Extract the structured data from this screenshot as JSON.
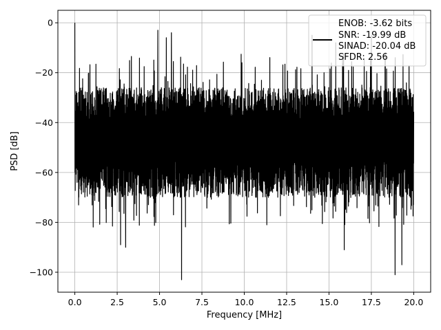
{
  "chart_data": {
    "type": "line",
    "title": "",
    "xlabel": "Frequency [MHz]",
    "ylabel": "PSD [dB]",
    "xlim": [
      -1.0,
      21.0
    ],
    "ylim": [
      -108,
      5
    ],
    "x_ticks": [
      0.0,
      2.5,
      5.0,
      7.5,
      10.0,
      12.5,
      15.0,
      17.5,
      20.0
    ],
    "x_tick_labels": [
      "0.0",
      "2.5",
      "5.0",
      "7.5",
      "10.0",
      "12.5",
      "15.0",
      "17.5",
      "20.0"
    ],
    "y_ticks": [
      0,
      -20,
      -40,
      -60,
      -80,
      -100
    ],
    "y_tick_labels": [
      "0",
      "−20",
      "−40",
      "−60",
      "−80",
      "−100"
    ],
    "grid": true,
    "legend_position": "top-right",
    "series": [
      {
        "name": "ENOB: -3.62 bits\nSNR: -19.99 dB\nSINAD: -20.04 dB\nSFDR: 2.56",
        "color": "#000000",
        "x_range": [
          0.0,
          20.0
        ],
        "noise_floor_band": [
          -70,
          -26
        ],
        "peaks": [
          {
            "x": 0.0,
            "y": 0.0
          },
          {
            "x": 4.9,
            "y": -3
          },
          {
            "x": 5.4,
            "y": -6
          },
          {
            "x": 5.7,
            "y": -4
          },
          {
            "x": 14.0,
            "y": -5
          },
          {
            "x": 15.4,
            "y": -8
          },
          {
            "x": 17.5,
            "y": -5
          }
        ],
        "troughs": [
          {
            "x": 6.3,
            "y": -103
          },
          {
            "x": 18.9,
            "y": -101
          },
          {
            "x": 2.7,
            "y": -89
          },
          {
            "x": 3.0,
            "y": -90
          },
          {
            "x": 15.9,
            "y": -91
          },
          {
            "x": 19.3,
            "y": -97
          }
        ]
      }
    ]
  },
  "legend": {
    "lines": [
      "ENOB: -3.62 bits",
      "SNR: -19.99 dB",
      "SINAD: -20.04 dB",
      "SFDR: 2.56"
    ]
  }
}
